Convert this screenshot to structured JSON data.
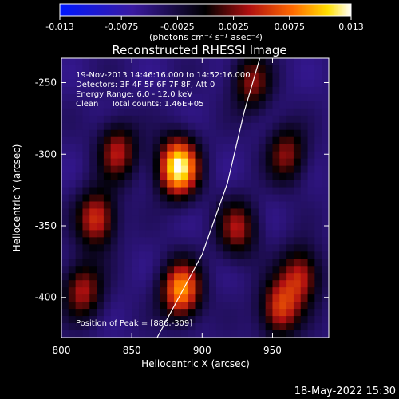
{
  "chart_data": {
    "type": "heatmap",
    "title": "Reconstructed RHESSI Image",
    "xlabel": "Heliocentric X (arcsec)",
    "ylabel": "Heliocentric Y (arcsec)",
    "xlim": [
      800,
      990
    ],
    "ylim": [
      -428,
      -233
    ],
    "x_ticks": [
      800,
      850,
      900,
      950
    ],
    "y_ticks": [
      -250,
      -300,
      -350,
      -400
    ],
    "colorbar": {
      "label": "(photons cm⁻² s⁻¹ asec⁻²)",
      "range": [
        -0.013,
        0.013
      ],
      "ticks": [
        "-0.013",
        "-0.0075",
        "-0.0025",
        "0.0025",
        "0.0075",
        "0.013"
      ]
    },
    "info_lines": [
      "19-Nov-2013 14:46:16.000 to 14:52:16.000",
      "Detectors: 3F 4F 5F 6F 7F 8F, Att 0",
      "Energy Range: 6.0 - 12.0 keV",
      "Clean     Total counts: 1.46E+05"
    ],
    "peak_label": "Position of Peak = [886,-309]",
    "sources": [
      {
        "x": 883,
        "y": -309,
        "value": 0.013
      },
      {
        "x": 885,
        "y": -395,
        "value": 0.009
      },
      {
        "x": 825,
        "y": -345,
        "value": 0.0055
      },
      {
        "x": 840,
        "y": -298,
        "value": 0.004
      },
      {
        "x": 955,
        "y": -408,
        "value": 0.0055
      },
      {
        "x": 970,
        "y": -385,
        "value": 0.0045
      },
      {
        "x": 925,
        "y": -352,
        "value": 0.0035
      },
      {
        "x": 960,
        "y": -300,
        "value": 0.003
      },
      {
        "x": 815,
        "y": -395,
        "value": 0.004
      },
      {
        "x": 935,
        "y": -250,
        "value": 0.003
      }
    ],
    "limb_curve": [
      [
        868,
        -428
      ],
      [
        900,
        -370
      ],
      [
        918,
        -320
      ],
      [
        930,
        -270
      ],
      [
        941,
        -233
      ]
    ]
  },
  "footer": {
    "date": "18-May-2022 15:30"
  },
  "colors": {
    "background": "#000000",
    "text": "#ffffff"
  }
}
